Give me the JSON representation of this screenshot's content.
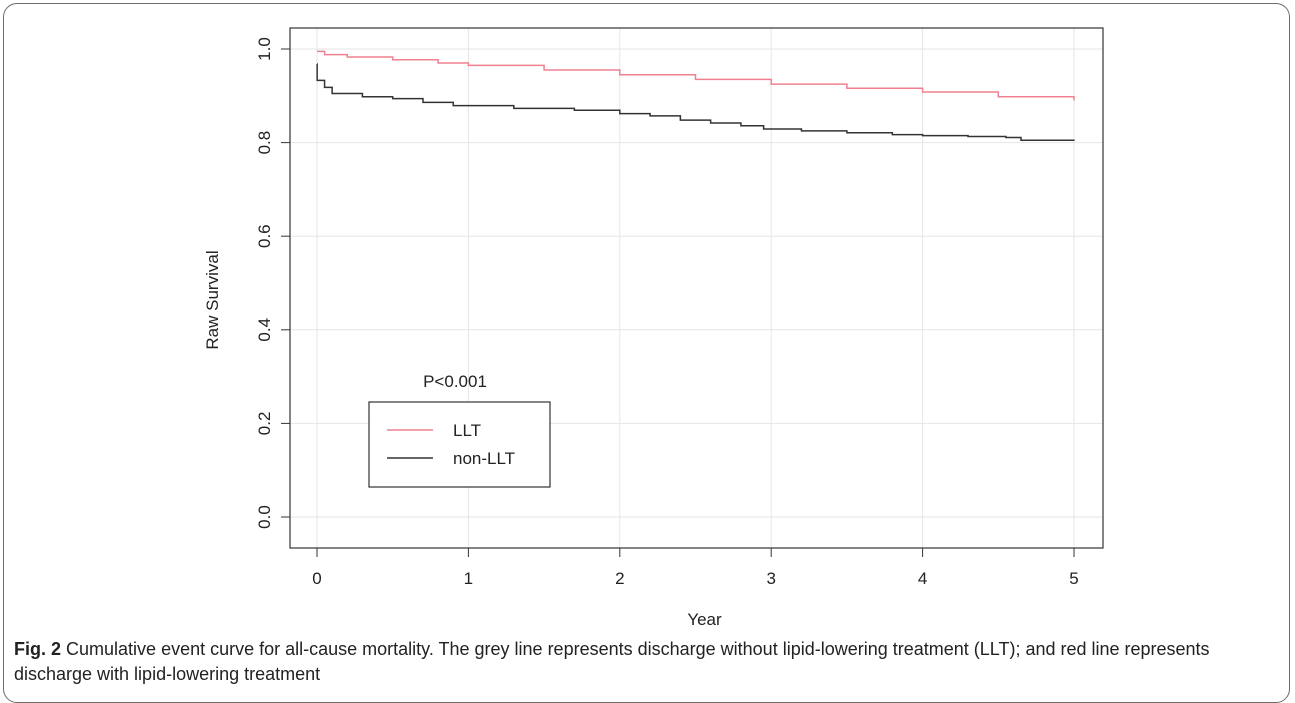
{
  "chart_data": {
    "type": "line",
    "xlabel": "Year",
    "ylabel": "Raw Survival",
    "xlim": [
      0,
      5
    ],
    "ylim": [
      0,
      1
    ],
    "x_ticks": [
      "0",
      "1",
      "2",
      "3",
      "4",
      "5"
    ],
    "y_ticks": [
      "0.0",
      "0.2",
      "0.4",
      "0.6",
      "0.8",
      "1.0"
    ],
    "grid": true,
    "annotation": "P<0.001",
    "legend_position": "bottom-left",
    "series": [
      {
        "name": "LLT",
        "color": "#f08090",
        "x": [
          0,
          0.05,
          0.2,
          0.5,
          0.8,
          1.0,
          1.5,
          2.0,
          2.5,
          3.0,
          3.5,
          4.0,
          4.5,
          5.0
        ],
        "y": [
          0.995,
          0.988,
          0.983,
          0.977,
          0.97,
          0.965,
          0.955,
          0.945,
          0.935,
          0.925,
          0.916,
          0.908,
          0.898,
          0.89
        ]
      },
      {
        "name": "non-LLT",
        "color": "#333333",
        "x": [
          0,
          0.001,
          0.05,
          0.1,
          0.3,
          0.5,
          0.7,
          0.9,
          1.3,
          1.7,
          2.0,
          2.2,
          2.4,
          2.6,
          2.8,
          2.95,
          3.2,
          3.5,
          3.8,
          4.0,
          4.3,
          4.55,
          4.65,
          5.0
        ],
        "y": [
          0.968,
          0.933,
          0.918,
          0.905,
          0.898,
          0.894,
          0.886,
          0.879,
          0.873,
          0.869,
          0.862,
          0.857,
          0.848,
          0.842,
          0.836,
          0.829,
          0.825,
          0.821,
          0.817,
          0.815,
          0.813,
          0.811,
          0.805,
          0.804
        ]
      }
    ]
  },
  "caption": {
    "figure_label": "Fig. 2",
    "text": "Cumulative event curve for all-cause mortality. The grey line represents discharge without lipid-lowering treatment (LLT); and red line represents discharge with lipid-lowering treatment"
  }
}
